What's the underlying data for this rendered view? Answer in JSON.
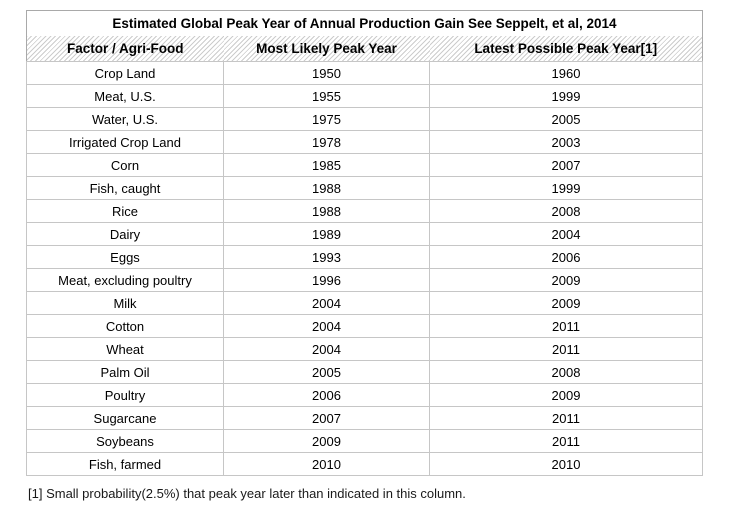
{
  "chart_data": {
    "type": "table",
    "title": "Estimated Global Peak Year of Annual Production Gain See Seppelt, et al, 2014",
    "columns": [
      "Factor / Agri-Food",
      "Most Likely Peak Year",
      "Latest Possible Peak Year[1]"
    ],
    "rows": [
      [
        "Crop Land",
        "1950",
        "1960"
      ],
      [
        "Meat, U.S.",
        "1955",
        "1999"
      ],
      [
        "Water, U.S.",
        "1975",
        "2005"
      ],
      [
        "Irrigated Crop Land",
        "1978",
        "2003"
      ],
      [
        "Corn",
        "1985",
        "2007"
      ],
      [
        "Fish, caught",
        "1988",
        "1999"
      ],
      [
        "Rice",
        "1988",
        "2008"
      ],
      [
        "Dairy",
        "1989",
        "2004"
      ],
      [
        "Eggs",
        "1993",
        "2006"
      ],
      [
        "Meat, excluding poultry",
        "1996",
        "2009"
      ],
      [
        "Milk",
        "2004",
        "2009"
      ],
      [
        "Cotton",
        "2004",
        "2011"
      ],
      [
        "Wheat",
        "2004",
        "2011"
      ],
      [
        "Palm Oil",
        "2005",
        "2008"
      ],
      [
        "Poultry",
        "2006",
        "2009"
      ],
      [
        "Sugarcane",
        "2007",
        "2011"
      ],
      [
        "Soybeans",
        "2009",
        "2011"
      ],
      [
        "Fish, farmed",
        "2010",
        "2010"
      ]
    ],
    "footnote": "[1] Small probability(2.5%) that peak year later than indicated in this column.",
    "layout": {
      "grid": "on",
      "header_style": "diagonal-hatch"
    },
    "colors": {
      "cell_border": "#c6c6c6",
      "outer_border": "#a9a9a9",
      "hatch_stripe": "#cccccc",
      "text": "#000000",
      "background": "#ffffff"
    }
  }
}
